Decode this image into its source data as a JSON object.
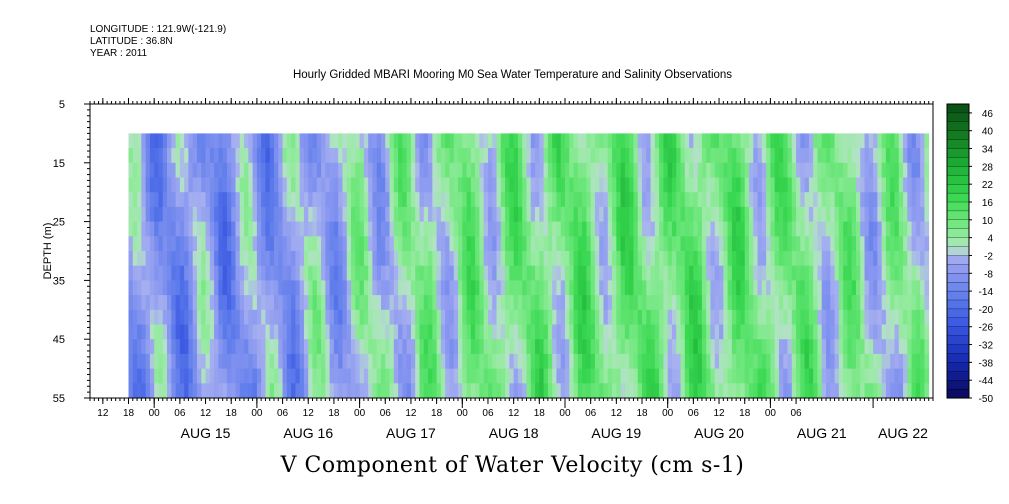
{
  "meta": {
    "longitude": "LONGITUDE : 121.9W(-121.9)",
    "latitude": "LATITUDE : 36.8N",
    "year": "YEAR : 2011"
  },
  "chart_data": {
    "type": "heatmap",
    "title": "Hourly Gridded MBARI Mooring M0 Sea Water Temperature and Salinity Observations",
    "xlabel": "V Component of Water Velocity (cm s-1)",
    "ylabel": "DEPTH (m)",
    "ylim": [
      5,
      55
    ],
    "y_inverted": true,
    "y_ticks": [
      5,
      15,
      25,
      35,
      45,
      55
    ],
    "x_start": "2011-08-14T09:00",
    "x_end": "2011-08-22T14:00",
    "x_hour_ticks": [
      "12",
      "18",
      "00",
      "06",
      "12",
      "18",
      "00",
      "06",
      "12",
      "18",
      "00",
      "06",
      "12",
      "18",
      "00",
      "06",
      "12",
      "18",
      "00",
      "06",
      "12",
      "18",
      "00",
      "06",
      "12",
      "18",
      "00",
      "06"
    ],
    "x_day_labels": [
      "AUG 15",
      "AUG 16",
      "AUG 17",
      "AUG 18",
      "AUG 19",
      "AUG 20",
      "AUG 21",
      "AUG 22"
    ],
    "data_time_range": [
      "2011-08-14T18:00",
      "2011-08-22T13:00"
    ],
    "data_depth_range": [
      10,
      55
    ],
    "colorbar": {
      "labels": [
        "46",
        "40",
        "34",
        "28",
        "22",
        "16",
        "10",
        "4",
        "-2",
        "-8",
        "-14",
        "-20",
        "-26",
        "-32",
        "-38",
        "-44",
        "-50"
      ],
      "range": [
        -50,
        49
      ]
    },
    "approx_field_mean_v_by_day": [
      {
        "day": "Aug 14",
        "v": -6
      },
      {
        "day": "Aug 15",
        "v": -9
      },
      {
        "day": "Aug 16",
        "v": -8
      },
      {
        "day": "Aug 17",
        "v": -1
      },
      {
        "day": "Aug 18",
        "v": 5
      },
      {
        "day": "Aug 19",
        "v": 8
      },
      {
        "day": "Aug 20",
        "v": 9
      },
      {
        "day": "Aug 21",
        "v": 7
      },
      {
        "day": "Aug 22",
        "v": 2
      }
    ]
  }
}
